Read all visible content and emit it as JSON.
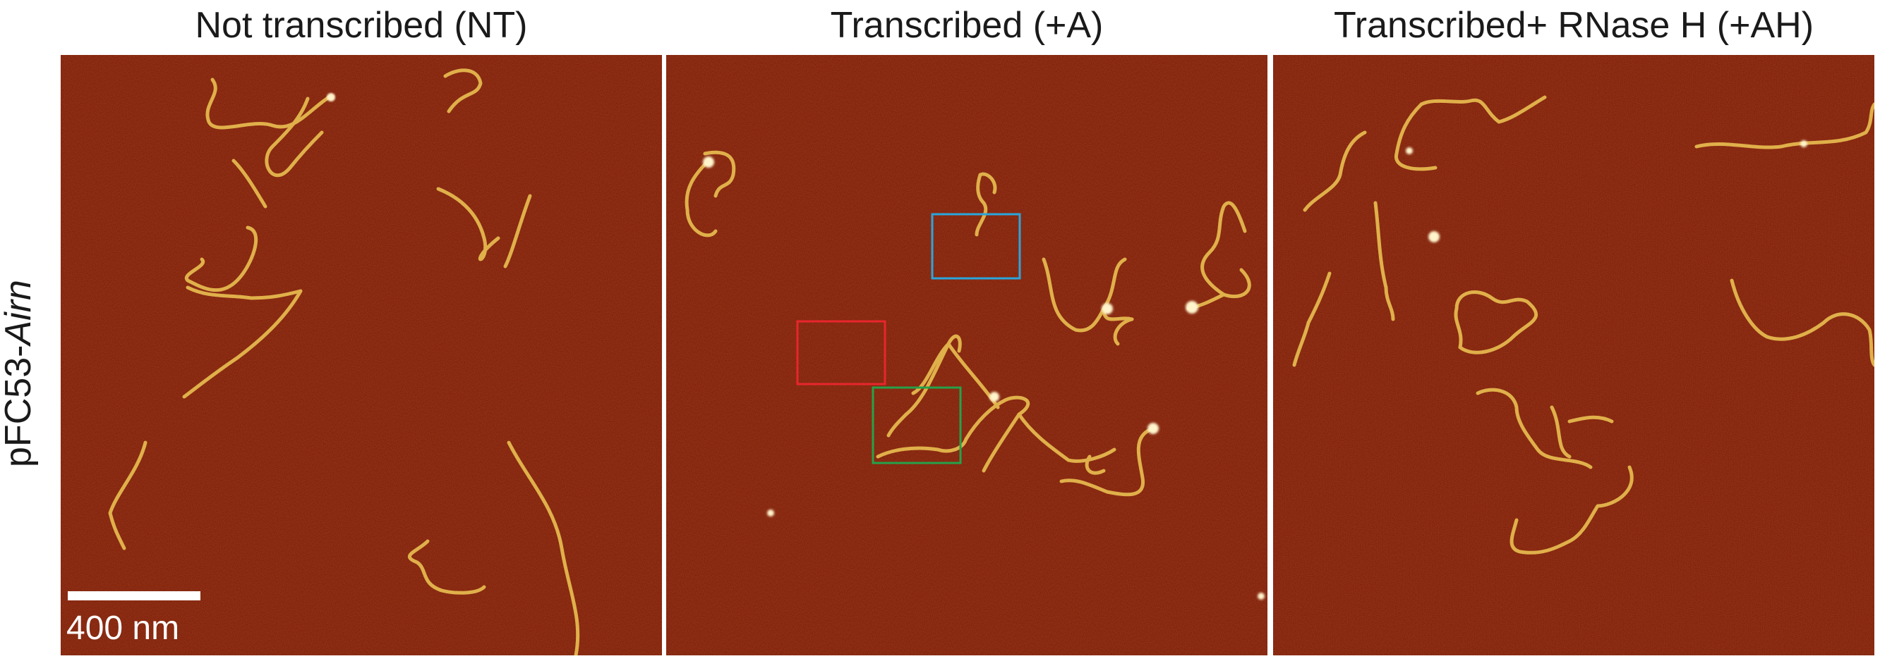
{
  "figure": {
    "row_label_prefix": "pFC53-",
    "row_label_italic": "Airn",
    "panels": [
      {
        "title": "Not transcribed (NT)"
      },
      {
        "title": "Transcribed (+A)"
      },
      {
        "title": "Transcribed+ RNase H (+AH)"
      }
    ],
    "scale_bar_label": "400 nm",
    "colors": {
      "background": "#7a1a08",
      "dna_strand": "#e0b04a",
      "bright_spot": "#fff4cc",
      "box_red": "#e8262c",
      "box_green": "#25a24a",
      "box_blue": "#2aa6dc"
    }
  }
}
